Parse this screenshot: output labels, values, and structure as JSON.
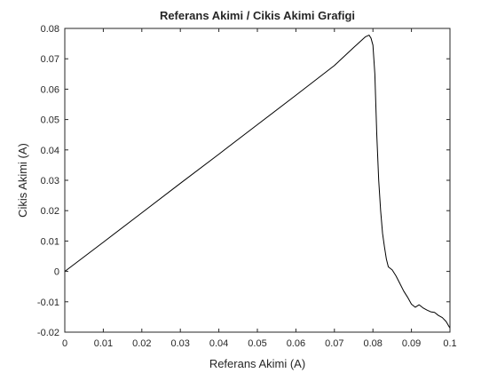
{
  "chart_data": {
    "type": "line",
    "title": "Referans Akimi / Cikis Akimi Grafigi",
    "xlabel": "Referans Akimi (A)",
    "ylabel": "Cikis Akimi (A)",
    "xlim": [
      0,
      0.1
    ],
    "ylim": [
      -0.02,
      0.08
    ],
    "xticks": [
      0,
      0.01,
      0.02,
      0.03,
      0.04,
      0.05,
      0.06,
      0.07,
      0.08,
      0.09,
      0.1
    ],
    "xtick_labels": [
      "0",
      "0.01",
      "0.02",
      "0.03",
      "0.04",
      "0.05",
      "0.06",
      "0.07",
      "0.08",
      "0.09",
      "0.1"
    ],
    "yticks": [
      -0.02,
      -0.01,
      0,
      0.01,
      0.02,
      0.03,
      0.04,
      0.05,
      0.06,
      0.07,
      0.08
    ],
    "ytick_labels": [
      "-0.02",
      "-0.01",
      "0",
      "0.01",
      "0.02",
      "0.03",
      "0.04",
      "0.05",
      "0.06",
      "0.07",
      "0.08"
    ],
    "grid": false,
    "box": true,
    "line_color": "#000000",
    "series": [
      {
        "x": [
          0,
          0.01,
          0.02,
          0.03,
          0.04,
          0.05,
          0.06,
          0.07,
          0.075,
          0.078,
          0.079,
          0.0795,
          0.08,
          0.0805,
          0.081,
          0.0815,
          0.082,
          0.0825,
          0.083,
          0.0835,
          0.084,
          0.085,
          0.086,
          0.087,
          0.088,
          0.089,
          0.09,
          0.091,
          0.092,
          0.093,
          0.094,
          0.095,
          0.096,
          0.097,
          0.098,
          0.099,
          0.1
        ],
        "y": [
          0,
          0.0096,
          0.0193,
          0.029,
          0.0386,
          0.0483,
          0.058,
          0.0678,
          0.0737,
          0.0772,
          0.0778,
          0.0768,
          0.0745,
          0.065,
          0.045,
          0.03,
          0.02,
          0.0125,
          0.008,
          0.004,
          0.0015,
          0.0005,
          -0.0015,
          -0.004,
          -0.0065,
          -0.0085,
          -0.0108,
          -0.0118,
          -0.011,
          -0.012,
          -0.0127,
          -0.0133,
          -0.0135,
          -0.0145,
          -0.0152,
          -0.0165,
          -0.0187
        ]
      }
    ]
  }
}
